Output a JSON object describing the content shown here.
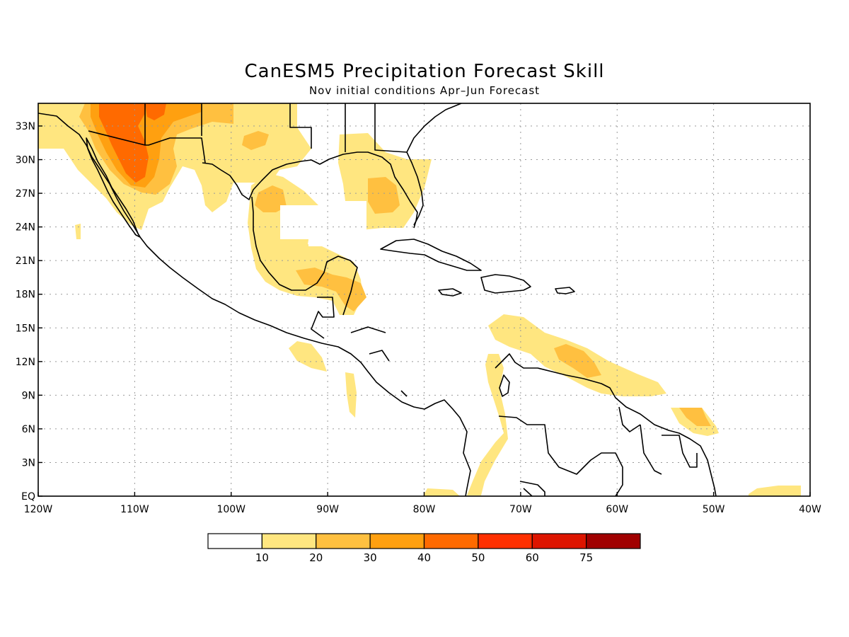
{
  "title": "CanESM5 Precipitation Forecast Skill",
  "subtitle": "Nov initial conditions  Apr–Jun Forecast",
  "lat_labels": [
    "33N",
    "30N",
    "27N",
    "24N",
    "21N",
    "18N",
    "15N",
    "12N",
    "9N",
    "6N",
    "3N",
    "EQ"
  ],
  "lon_labels": [
    "120W",
    "110W",
    "100W",
    "90W",
    "80W",
    "70W",
    "60W",
    "50W",
    "40W"
  ],
  "legend": {
    "labels": [
      "10",
      "20",
      "30",
      "40",
      "50",
      "60",
      "75"
    ],
    "colors": [
      "#ffffff",
      "#ffe680",
      "#ffc040",
      "#ffa010",
      "#ff6a00",
      "#ff3000",
      "#dd1500",
      "#a00000"
    ]
  },
  "colors": {
    "coast": "#000000",
    "level1": "#ffe680",
    "level2": "#ffc040",
    "level3": "#ffa010",
    "level4": "#ff6a00"
  }
}
